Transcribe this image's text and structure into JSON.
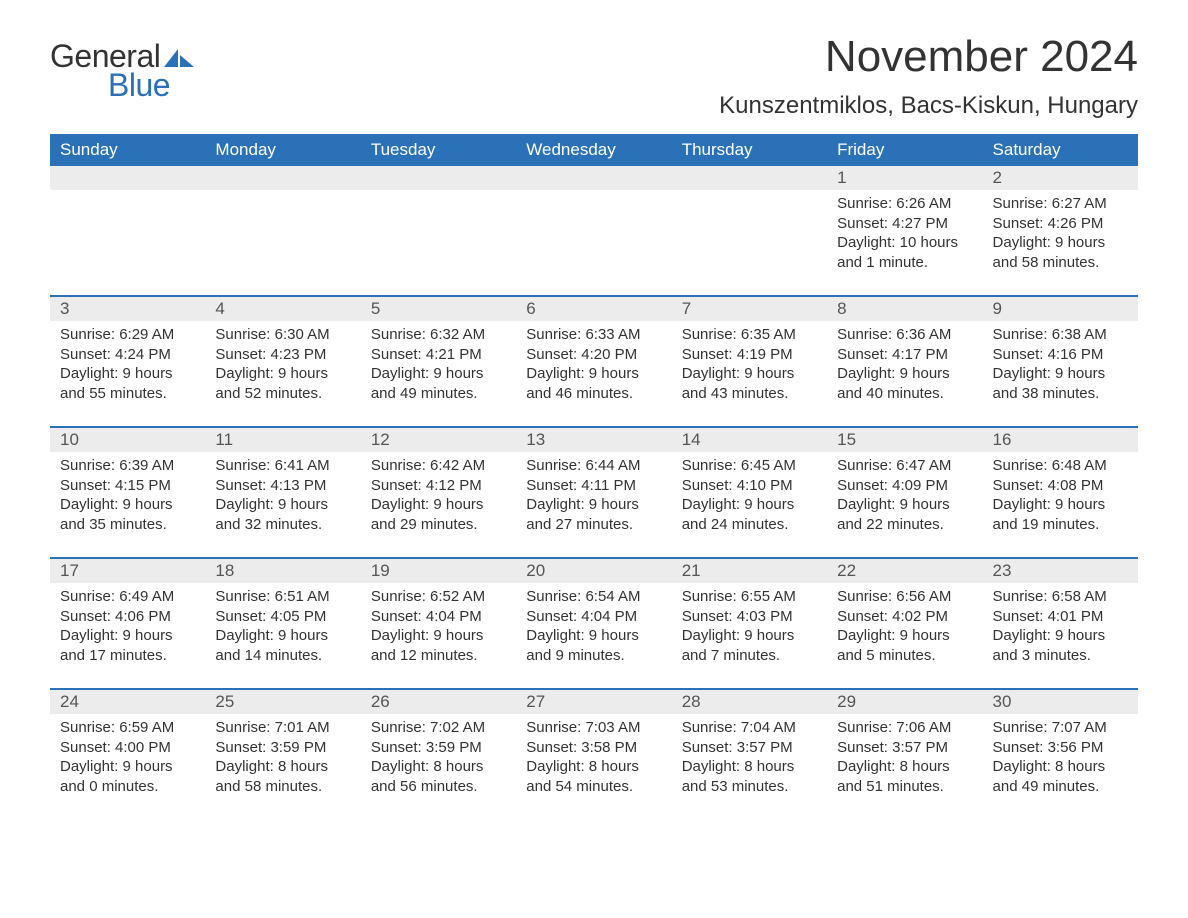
{
  "logo": {
    "word1": "General",
    "word2": "Blue",
    "icon_color": "#2a71b8"
  },
  "title": "November 2024",
  "location": "Kunszentmiklos, Bacs-Kiskun, Hungary",
  "colors": {
    "header_bg": "#2a71b8",
    "header_fg": "#ffffff",
    "daynum_bg": "#ececec",
    "text": "#333333",
    "rule": "#2a71b8"
  },
  "day_headers": [
    "Sunday",
    "Monday",
    "Tuesday",
    "Wednesday",
    "Thursday",
    "Friday",
    "Saturday"
  ],
  "weeks": [
    [
      null,
      null,
      null,
      null,
      null,
      {
        "n": "1",
        "sr": "6:26 AM",
        "ss": "4:27 PM",
        "dl": "10 hours and 1 minute."
      },
      {
        "n": "2",
        "sr": "6:27 AM",
        "ss": "4:26 PM",
        "dl": "9 hours and 58 minutes."
      }
    ],
    [
      {
        "n": "3",
        "sr": "6:29 AM",
        "ss": "4:24 PM",
        "dl": "9 hours and 55 minutes."
      },
      {
        "n": "4",
        "sr": "6:30 AM",
        "ss": "4:23 PM",
        "dl": "9 hours and 52 minutes."
      },
      {
        "n": "5",
        "sr": "6:32 AM",
        "ss": "4:21 PM",
        "dl": "9 hours and 49 minutes."
      },
      {
        "n": "6",
        "sr": "6:33 AM",
        "ss": "4:20 PM",
        "dl": "9 hours and 46 minutes."
      },
      {
        "n": "7",
        "sr": "6:35 AM",
        "ss": "4:19 PM",
        "dl": "9 hours and 43 minutes."
      },
      {
        "n": "8",
        "sr": "6:36 AM",
        "ss": "4:17 PM",
        "dl": "9 hours and 40 minutes."
      },
      {
        "n": "9",
        "sr": "6:38 AM",
        "ss": "4:16 PM",
        "dl": "9 hours and 38 minutes."
      }
    ],
    [
      {
        "n": "10",
        "sr": "6:39 AM",
        "ss": "4:15 PM",
        "dl": "9 hours and 35 minutes."
      },
      {
        "n": "11",
        "sr": "6:41 AM",
        "ss": "4:13 PM",
        "dl": "9 hours and 32 minutes."
      },
      {
        "n": "12",
        "sr": "6:42 AM",
        "ss": "4:12 PM",
        "dl": "9 hours and 29 minutes."
      },
      {
        "n": "13",
        "sr": "6:44 AM",
        "ss": "4:11 PM",
        "dl": "9 hours and 27 minutes."
      },
      {
        "n": "14",
        "sr": "6:45 AM",
        "ss": "4:10 PM",
        "dl": "9 hours and 24 minutes."
      },
      {
        "n": "15",
        "sr": "6:47 AM",
        "ss": "4:09 PM",
        "dl": "9 hours and 22 minutes."
      },
      {
        "n": "16",
        "sr": "6:48 AM",
        "ss": "4:08 PM",
        "dl": "9 hours and 19 minutes."
      }
    ],
    [
      {
        "n": "17",
        "sr": "6:49 AM",
        "ss": "4:06 PM",
        "dl": "9 hours and 17 minutes."
      },
      {
        "n": "18",
        "sr": "6:51 AM",
        "ss": "4:05 PM",
        "dl": "9 hours and 14 minutes."
      },
      {
        "n": "19",
        "sr": "6:52 AM",
        "ss": "4:04 PM",
        "dl": "9 hours and 12 minutes."
      },
      {
        "n": "20",
        "sr": "6:54 AM",
        "ss": "4:04 PM",
        "dl": "9 hours and 9 minutes."
      },
      {
        "n": "21",
        "sr": "6:55 AM",
        "ss": "4:03 PM",
        "dl": "9 hours and 7 minutes."
      },
      {
        "n": "22",
        "sr": "6:56 AM",
        "ss": "4:02 PM",
        "dl": "9 hours and 5 minutes."
      },
      {
        "n": "23",
        "sr": "6:58 AM",
        "ss": "4:01 PM",
        "dl": "9 hours and 3 minutes."
      }
    ],
    [
      {
        "n": "24",
        "sr": "6:59 AM",
        "ss": "4:00 PM",
        "dl": "9 hours and 0 minutes."
      },
      {
        "n": "25",
        "sr": "7:01 AM",
        "ss": "3:59 PM",
        "dl": "8 hours and 58 minutes."
      },
      {
        "n": "26",
        "sr": "7:02 AM",
        "ss": "3:59 PM",
        "dl": "8 hours and 56 minutes."
      },
      {
        "n": "27",
        "sr": "7:03 AM",
        "ss": "3:58 PM",
        "dl": "8 hours and 54 minutes."
      },
      {
        "n": "28",
        "sr": "7:04 AM",
        "ss": "3:57 PM",
        "dl": "8 hours and 53 minutes."
      },
      {
        "n": "29",
        "sr": "7:06 AM",
        "ss": "3:57 PM",
        "dl": "8 hours and 51 minutes."
      },
      {
        "n": "30",
        "sr": "7:07 AM",
        "ss": "3:56 PM",
        "dl": "8 hours and 49 minutes."
      }
    ]
  ],
  "labels": {
    "sunrise": "Sunrise: ",
    "sunset": "Sunset: ",
    "daylight": "Daylight: "
  }
}
